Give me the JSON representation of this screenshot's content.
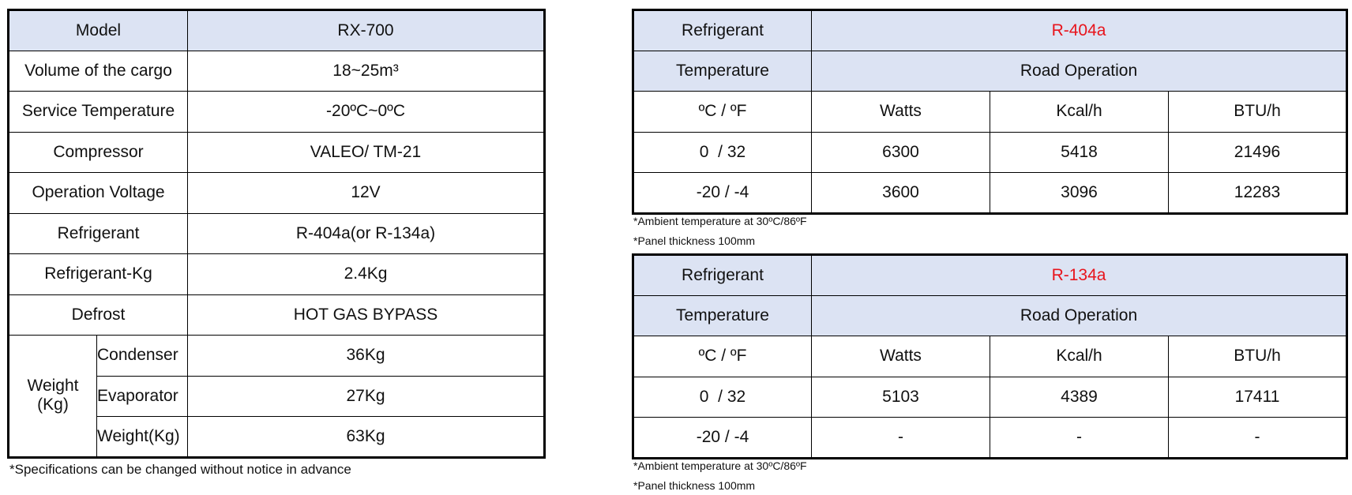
{
  "spec_table": {
    "rows": [
      [
        "Model",
        "RX-700"
      ],
      [
        "Volume of the cargo",
        "18~25m³"
      ],
      [
        "Service Temperature",
        "-20ºC~0ºC"
      ],
      [
        "Compressor",
        "VALEO/ TM-21"
      ],
      [
        "Operation Voltage",
        "12V"
      ],
      [
        "Refrigerant",
        "R-404a(or R-134a)"
      ],
      [
        "Refrigerant-Kg",
        "2.4Kg"
      ],
      [
        "Defrost",
        "HOT GAS BYPASS"
      ]
    ],
    "weight": {
      "label": "Weight\n(Kg)",
      "rows": [
        [
          "Condenser",
          "36Kg"
        ],
        [
          "Evaporator",
          "27Kg"
        ],
        [
          "Weight(Kg)",
          "63Kg"
        ]
      ]
    },
    "note": "*Specifications can be changed without notice in advance"
  },
  "performance_tables": [
    {
      "refrigerant_label": "Refrigerant",
      "refrigerant": "R-404a",
      "temperature_label": "Temperature",
      "operation": "Road Operation",
      "header": [
        "ºC / ºF",
        "Watts",
        "Kcal/h",
        "BTU/h"
      ],
      "rows": [
        [
          "0  / 32",
          6300,
          5418,
          21496
        ],
        [
          "-20 / -4",
          3600,
          3096,
          12283
        ]
      ],
      "notes": [
        "*Ambient temperature at 30ºC/86ºF",
        "*Panel thickness 100mm"
      ]
    },
    {
      "refrigerant_label": "Refrigerant",
      "refrigerant": "R-134a",
      "temperature_label": "Temperature",
      "operation": "Road Operation",
      "header": [
        "ºC / ºF",
        "Watts",
        "Kcal/h",
        "BTU/h"
      ],
      "rows": [
        [
          "0  / 32",
          5103,
          4389,
          17411
        ],
        [
          "-20 / -4",
          "-",
          "-",
          "-"
        ]
      ],
      "notes": [
        "*Ambient temperature at 30ºC/86ºF",
        "*Panel thickness 100mm"
      ]
    }
  ]
}
